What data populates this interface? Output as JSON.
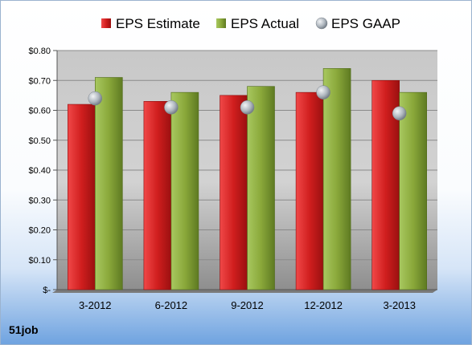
{
  "company": "51job",
  "chart_data": {
    "type": "bar",
    "title": "",
    "xlabel": "",
    "ylabel": "",
    "categories": [
      "3-2012",
      "6-2012",
      "9-2012",
      "12-2012",
      "3-2013"
    ],
    "series": [
      {
        "name": "EPS Estimate",
        "type": "bar",
        "color": "#cc1f1f",
        "values": [
          0.62,
          0.63,
          0.65,
          0.66,
          0.7
        ]
      },
      {
        "name": "EPS Actual",
        "type": "bar",
        "color": "#8caa3c",
        "values": [
          0.71,
          0.66,
          0.68,
          0.74,
          0.66
        ]
      },
      {
        "name": "EPS GAAP",
        "type": "scatter",
        "color": "#a9b3bd",
        "values": [
          0.64,
          0.61,
          0.61,
          0.66,
          0.59
        ]
      }
    ],
    "ylim": [
      0,
      0.8
    ],
    "yticks": [
      {
        "value": 0.0,
        "label": "$-"
      },
      {
        "value": 0.1,
        "label": "$0.10"
      },
      {
        "value": 0.2,
        "label": "$0.20"
      },
      {
        "value": 0.3,
        "label": "$0.30"
      },
      {
        "value": 0.4,
        "label": "$0.40"
      },
      {
        "value": 0.5,
        "label": "$0.50"
      },
      {
        "value": 0.6,
        "label": "$0.60"
      },
      {
        "value": 0.7,
        "label": "$0.70"
      },
      {
        "value": 0.8,
        "label": "$0.80"
      }
    ],
    "grid": true,
    "legend": "top"
  }
}
